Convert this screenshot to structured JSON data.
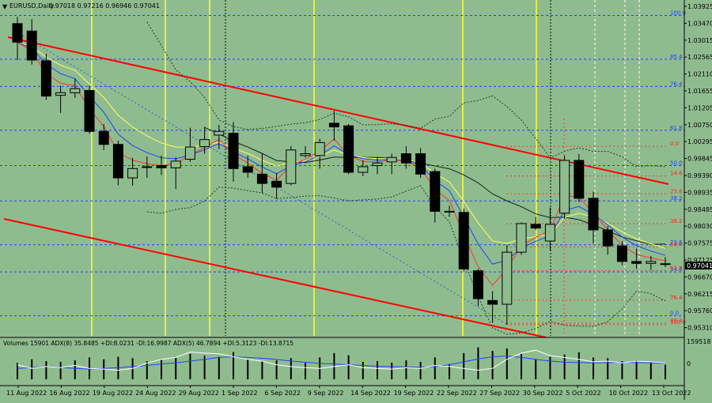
{
  "header": {
    "symbol": "EURUSD,Daily",
    "ohlc": "0.97018 0.97216 0.96946 0.97041",
    "arrow": "▼"
  },
  "price_axis": {
    "ticks": [
      "1.03925",
      "1.03470",
      "1.03015",
      "1.02565",
      "1.02110",
      "1.01655",
      "1.01205",
      "1.00750",
      "1.00295",
      "0.99845",
      "0.99390",
      "0.98935",
      "0.98485",
      "0.98030",
      "0.97575",
      "0.97125",
      "0.96670",
      "0.96215",
      "0.95760",
      "0.95310"
    ],
    "current": "0.97041"
  },
  "fib_blue": [
    {
      "label": "100.0",
      "price": 1.0372
    },
    {
      "label": "85.4",
      "price": 1.0254
    },
    {
      "label": "76.4",
      "price": 1.0181
    },
    {
      "label": "61.8",
      "price": 1.0063
    },
    {
      "label": "50.0",
      "price": 0.9968
    },
    {
      "label": "38.2",
      "price": 0.9873
    },
    {
      "label": "23.6",
      "price": 0.9755
    },
    {
      "label": "14.6",
      "price": 0.9682
    },
    {
      "label": "0.0",
      "price": 0.9564
    }
  ],
  "fib_red": [
    {
      "label": "0.0",
      "price": 1.002
    },
    {
      "label": "14.6",
      "price": 0.994
    },
    {
      "label": "23.6",
      "price": 0.9892
    },
    {
      "label": "38.2",
      "price": 0.9812
    },
    {
      "label": "50.0",
      "price": 0.9749
    },
    {
      "label": "61.8",
      "price": 0.9685
    },
    {
      "label": "76.4",
      "price": 0.9606
    },
    {
      "label": "88.4",
      "price": 0.9544
    },
    {
      "label": "100.0",
      "price": 0.954
    }
  ],
  "volume_panel": {
    "label": "Volumes 15901  ADX(8) 35.8485 +DI:8.0231 -DI:16.9987  ADX(5) 46.7894 +DI:5.3123 -DI:13.8715",
    "max_label": "159518",
    "zero_label": "0"
  },
  "chart_data": {
    "type": "candlestick",
    "symbol": "EURUSD",
    "timeframe": "Daily",
    "ylim": [
      0.951,
      1.0405
    ],
    "dates": [
      "11 Aug 2022",
      "16 Aug 2022",
      "19 Aug 2022",
      "24 Aug 2022",
      "29 Aug 2022",
      "1 Sep 2022",
      "6 Sep 2022",
      "9 Sep 2022",
      "14 Sep 2022",
      "19 Sep 2022",
      "22 Sep 2022",
      "27 Sep 2022",
      "30 Sep 2022",
      "5 Oct 2022",
      "10 Oct 2022",
      "13 Oct 2022"
    ],
    "candles": [
      {
        "o": 1.035,
        "h": 1.0368,
        "l": 1.0252,
        "c": 1.03
      },
      {
        "o": 1.033,
        "h": 1.0362,
        "l": 1.024,
        "c": 1.0252
      },
      {
        "o": 1.025,
        "h": 1.0269,
        "l": 1.0145,
        "c": 1.0155
      },
      {
        "o": 1.0157,
        "h": 1.0183,
        "l": 1.011,
        "c": 1.0164
      },
      {
        "o": 1.0164,
        "h": 1.0202,
        "l": 1.015,
        "c": 1.0175
      },
      {
        "o": 1.017,
        "h": 1.0183,
        "l": 1.0054,
        "c": 1.006
      },
      {
        "o": 1.006,
        "h": 1.008,
        "l": 1.001,
        "c": 1.0025
      },
      {
        "o": 1.0025,
        "h": 1.0035,
        "l": 0.9915,
        "c": 0.9935
      },
      {
        "o": 0.9935,
        "h": 0.9989,
        "l": 0.9914,
        "c": 0.996
      },
      {
        "o": 0.9965,
        "h": 0.9993,
        "l": 0.9935,
        "c": 0.9965
      },
      {
        "o": 0.9968,
        "h": 0.9995,
        "l": 0.9943,
        "c": 0.9962
      },
      {
        "o": 0.9962,
        "h": 0.999,
        "l": 0.9905,
        "c": 0.998
      },
      {
        "o": 0.9985,
        "h": 1.007,
        "l": 0.9978,
        "c": 1.0018
      },
      {
        "o": 1.0019,
        "h": 1.0072,
        "l": 1.0,
        "c": 1.0038
      },
      {
        "o": 1.005,
        "h": 1.0078,
        "l": 1.0012,
        "c": 1.006
      },
      {
        "o": 1.0055,
        "h": 1.0085,
        "l": 0.9925,
        "c": 0.996
      },
      {
        "o": 0.9965,
        "h": 0.9995,
        "l": 0.9935,
        "c": 0.995
      },
      {
        "o": 0.9945,
        "h": 1.0,
        "l": 0.9895,
        "c": 0.992
      },
      {
        "o": 0.9926,
        "h": 0.9948,
        "l": 0.9878,
        "c": 0.991
      },
      {
        "o": 0.992,
        "h": 1.002,
        "l": 0.9915,
        "c": 1.001
      },
      {
        "o": 0.9995,
        "h": 1.002,
        "l": 0.999,
        "c": 1.0
      },
      {
        "o": 0.9995,
        "h": 1.004,
        "l": 0.996,
        "c": 1.003
      },
      {
        "o": 1.0082,
        "h": 1.0115,
        "l": 1.0035,
        "c": 1.0072
      },
      {
        "o": 1.0075,
        "h": 1.008,
        "l": 0.9945,
        "c": 0.995
      },
      {
        "o": 0.995,
        "h": 0.9982,
        "l": 0.994,
        "c": 0.9965
      },
      {
        "o": 0.9968,
        "h": 0.999,
        "l": 0.9945,
        "c": 0.9975
      },
      {
        "o": 0.9978,
        "h": 1.0,
        "l": 0.9945,
        "c": 0.999
      },
      {
        "o": 1.0,
        "h": 1.002,
        "l": 0.996,
        "c": 0.9975
      },
      {
        "o": 1.0,
        "h": 1.0015,
        "l": 0.9935,
        "c": 0.9945
      },
      {
        "o": 0.9952,
        "h": 0.996,
        "l": 0.9815,
        "c": 0.9845
      },
      {
        "o": 0.9845,
        "h": 0.986,
        "l": 0.983,
        "c": 0.9845
      },
      {
        "o": 0.9842,
        "h": 0.9852,
        "l": 0.9683,
        "c": 0.969
      },
      {
        "o": 0.9685,
        "h": 0.969,
        "l": 0.959,
        "c": 0.961
      },
      {
        "o": 0.9605,
        "h": 0.963,
        "l": 0.9545,
        "c": 0.9595
      },
      {
        "o": 0.9595,
        "h": 0.9755,
        "l": 0.954,
        "c": 0.9735
      },
      {
        "o": 0.9735,
        "h": 0.9815,
        "l": 0.9728,
        "c": 0.9812
      },
      {
        "o": 0.981,
        "h": 0.983,
        "l": 0.9795,
        "c": 0.98
      },
      {
        "o": 0.9765,
        "h": 0.9855,
        "l": 0.974,
        "c": 0.981
      },
      {
        "o": 0.984,
        "h": 0.9995,
        "l": 0.9825,
        "c": 0.9982
      },
      {
        "o": 0.9982,
        "h": 0.9999,
        "l": 0.987,
        "c": 0.988
      },
      {
        "o": 0.988,
        "h": 0.9898,
        "l": 0.9758,
        "c": 0.9795
      },
      {
        "o": 0.9795,
        "h": 0.9805,
        "l": 0.9728,
        "c": 0.9752
      },
      {
        "o": 0.9752,
        "h": 0.9765,
        "l": 0.97,
        "c": 0.971
      },
      {
        "o": 0.971,
        "h": 0.9745,
        "l": 0.969,
        "c": 0.9705
      },
      {
        "o": 0.9705,
        "h": 0.9725,
        "l": 0.9687,
        "c": 0.971
      },
      {
        "o": 0.9702,
        "h": 0.9722,
        "l": 0.9695,
        "c": 0.9704
      }
    ],
    "volume": [
      0.45,
      0.55,
      0.5,
      0.48,
      0.52,
      0.6,
      0.55,
      0.62,
      0.58,
      0.5,
      0.53,
      0.6,
      0.7,
      0.65,
      0.62,
      0.75,
      0.55,
      0.5,
      0.52,
      0.58,
      0.45,
      0.6,
      0.72,
      0.66,
      0.48,
      0.5,
      0.46,
      0.52,
      0.48,
      0.6,
      0.42,
      0.72,
      0.88,
      0.78,
      0.85,
      0.7,
      0.55,
      0.62,
      0.68,
      0.74,
      0.6,
      0.58,
      0.5,
      0.52,
      0.48,
      0.4
    ],
    "adx": [
      0.3,
      0.32,
      0.35,
      0.33,
      0.3,
      0.28,
      0.3,
      0.32,
      0.35,
      0.38,
      0.42,
      0.45,
      0.5,
      0.55,
      0.6,
      0.62,
      0.6,
      0.58,
      0.55,
      0.5,
      0.47,
      0.44,
      0.42,
      0.4,
      0.38,
      0.36,
      0.35,
      0.34,
      0.33,
      0.35,
      0.4,
      0.48,
      0.56,
      0.62,
      0.64,
      0.6,
      0.55,
      0.5,
      0.47,
      0.46,
      0.45,
      0.46,
      0.47,
      0.46,
      0.45,
      0.44
    ],
    "di_plus": [
      0.4,
      0.3,
      0.35,
      0.32,
      0.38,
      0.3,
      0.28,
      0.25,
      0.3,
      0.45,
      0.55,
      0.6,
      0.75,
      0.72,
      0.7,
      0.62,
      0.55,
      0.5,
      0.4,
      0.35,
      0.32,
      0.3,
      0.35,
      0.4,
      0.32,
      0.3,
      0.28,
      0.32,
      0.3,
      0.38,
      0.35,
      0.3,
      0.25,
      0.3,
      0.55,
      0.72,
      0.8,
      0.65,
      0.6,
      0.55,
      0.48,
      0.5,
      0.45,
      0.5,
      0.48,
      0.45
    ]
  }
}
